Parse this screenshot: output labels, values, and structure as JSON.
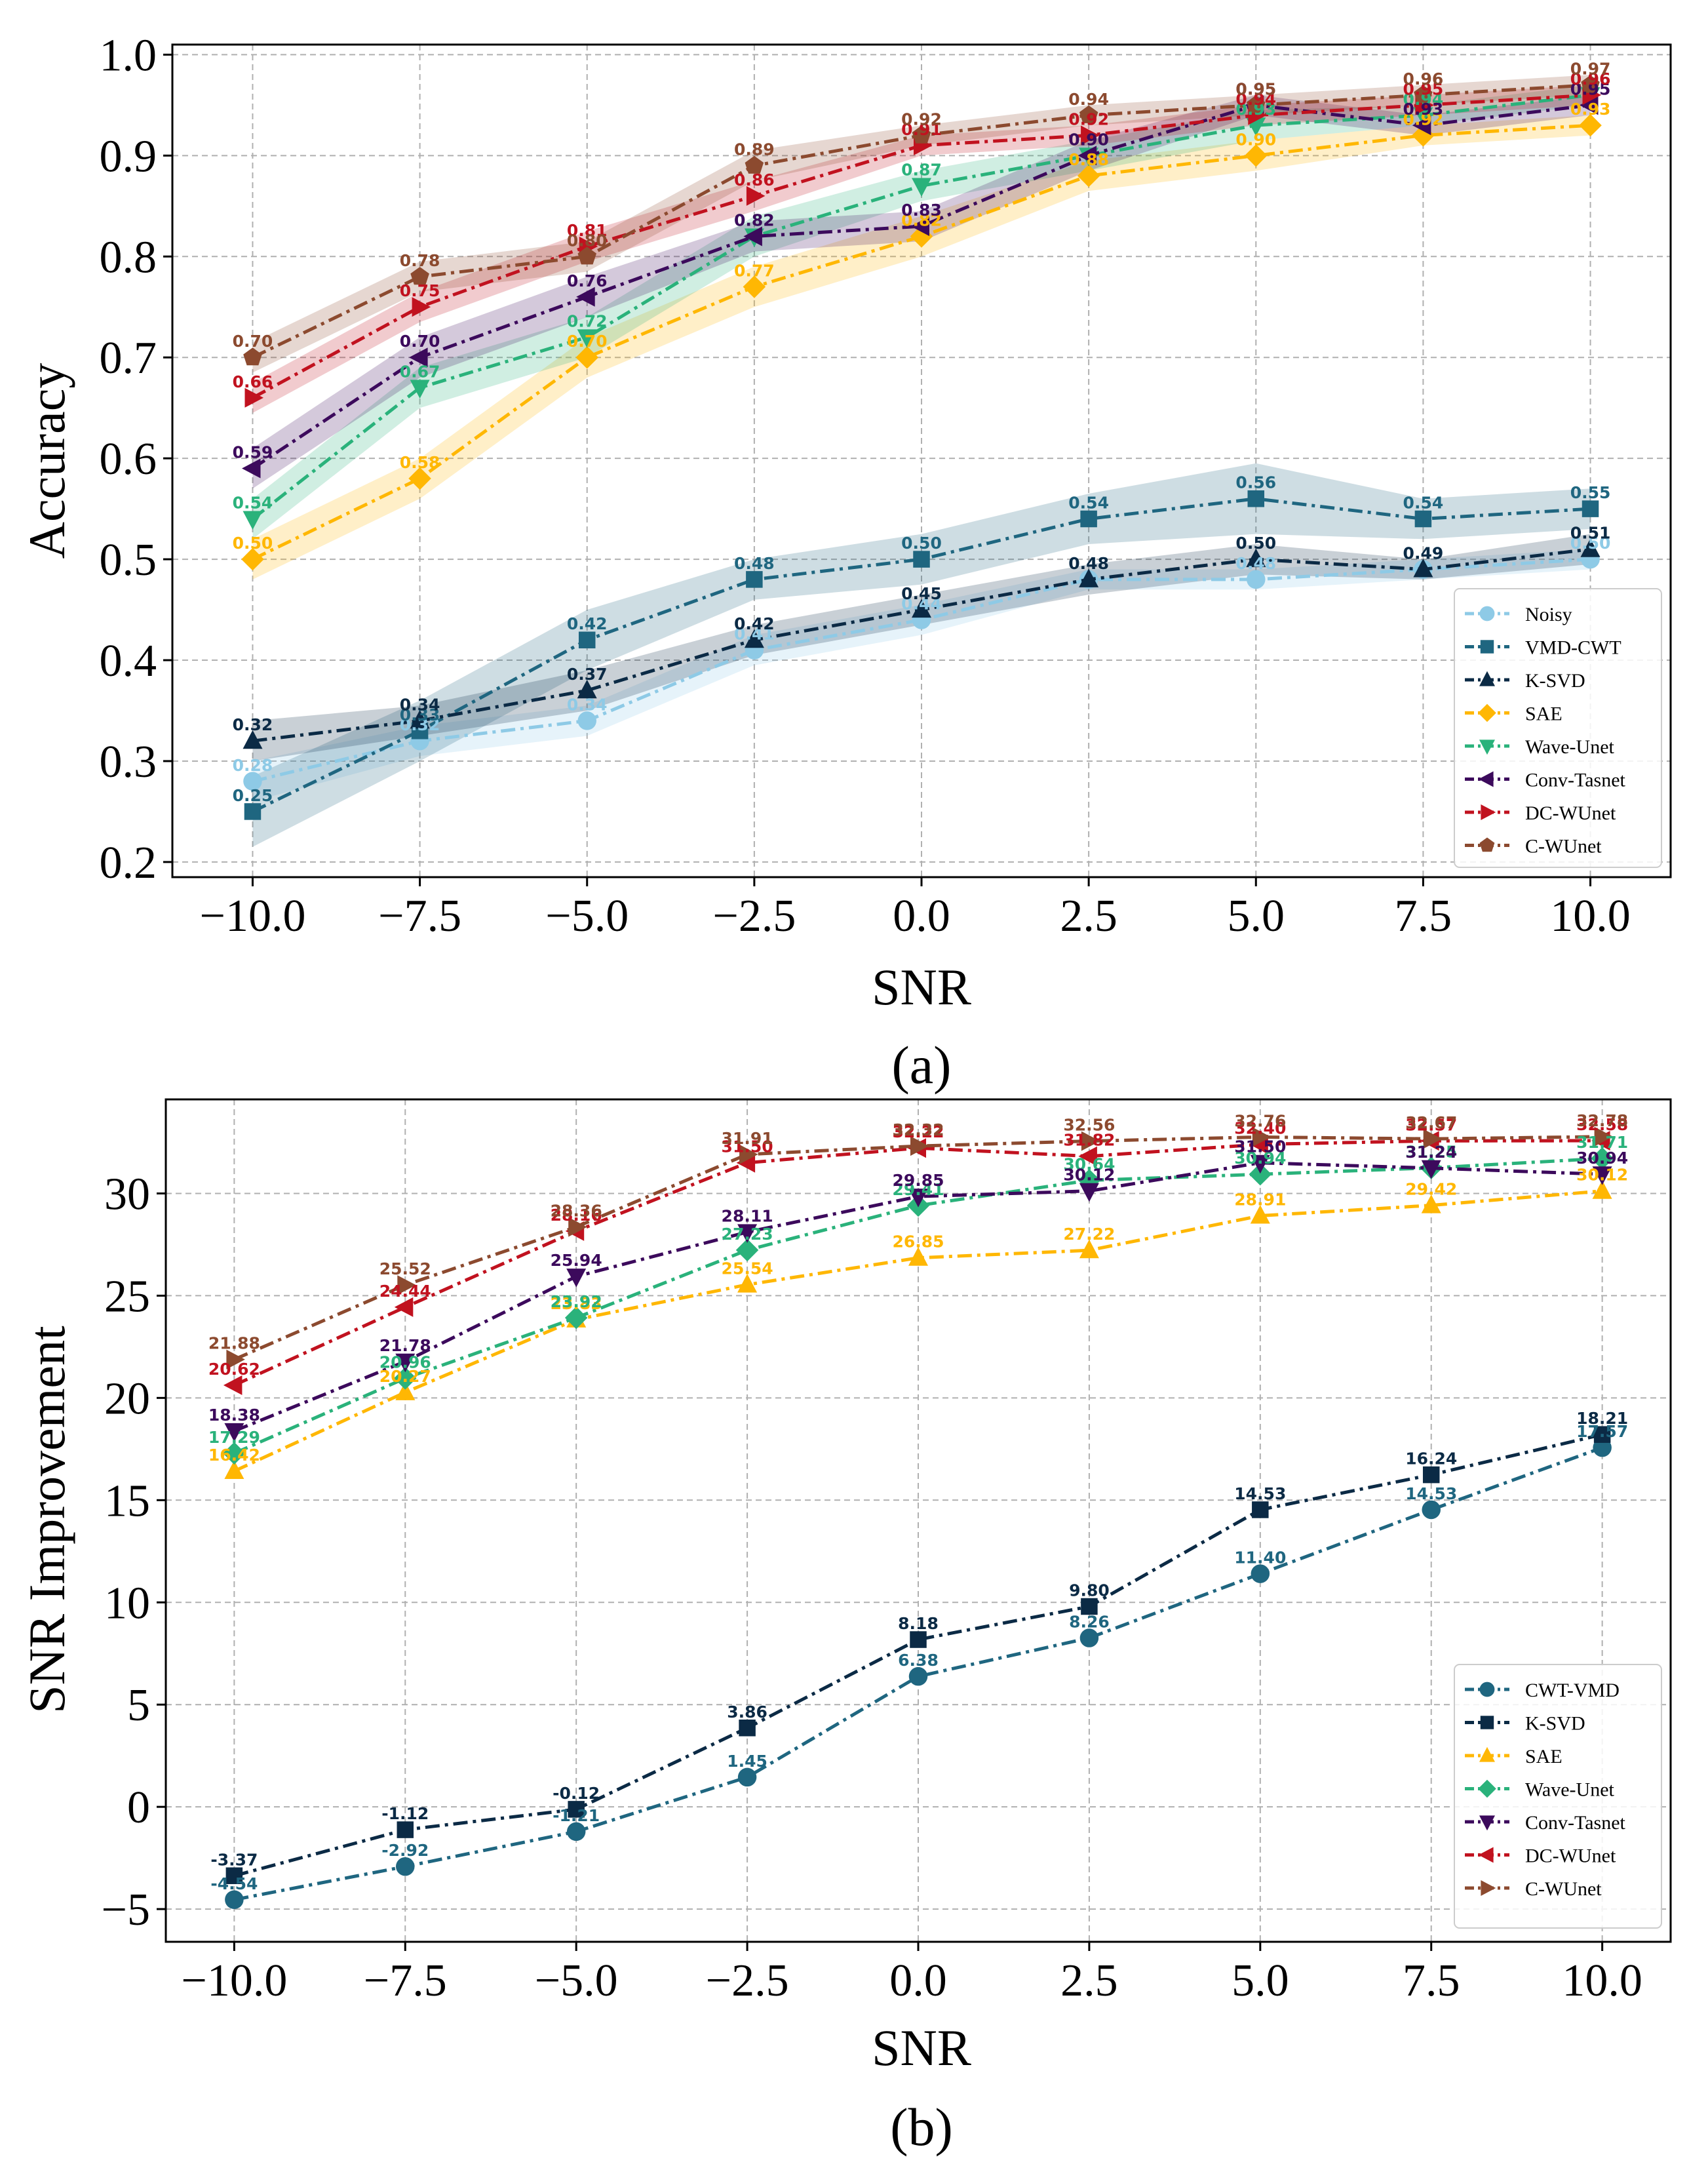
{
  "chart_data": [
    {
      "type": "line",
      "panel": "(a)",
      "xlabel": "SNR",
      "ylabel": "Accuracy",
      "x": [
        -10.0,
        -7.5,
        -5.0,
        -2.5,
        0.0,
        2.5,
        5.0,
        7.5,
        10.0
      ],
      "xticks": [
        -10.0,
        -7.5,
        -5.0,
        -2.5,
        0.0,
        2.5,
        5.0,
        7.5,
        10.0
      ],
      "xticklabels": [
        "−10.0",
        "−7.5",
        "−5.0",
        "−2.5",
        "0.0",
        "2.5",
        "5.0",
        "7.5",
        "10.0"
      ],
      "yticks": [
        0.2,
        0.3,
        0.4,
        0.5,
        0.6,
        0.7,
        0.8,
        0.9,
        1.0
      ],
      "yticklabels": [
        "0.2",
        "0.3",
        "0.4",
        "0.5",
        "0.6",
        "0.7",
        "0.8",
        "0.9",
        "1.0"
      ],
      "xlim": [
        -11.2,
        11.2
      ],
      "ylim": [
        0.185,
        1.01
      ],
      "grid": true,
      "legend_position": "lower right",
      "shaded_band": true,
      "series": [
        {
          "name": "Noisy",
          "color": "#8ecae6",
          "marker": "circle",
          "values": [
            0.28,
            0.32,
            0.34,
            0.41,
            0.44,
            0.48,
            0.48,
            0.49,
            0.5
          ],
          "labels": [
            "0.28",
            "0.32",
            "0.34",
            "0.41",
            "0.44",
            "0.48",
            "0.48",
            "0.49",
            "0.50"
          ],
          "band": [
            0.02,
            0.015,
            0.015,
            0.015,
            0.015,
            0.01,
            0.01,
            0.01,
            0.01
          ]
        },
        {
          "name": "VMD-CWT",
          "color": "#1f6680",
          "marker": "square",
          "values": [
            0.25,
            0.33,
            0.42,
            0.48,
            0.5,
            0.54,
            0.56,
            0.54,
            0.55
          ],
          "labels": [
            "0.25",
            "0.33",
            "0.42",
            "0.48",
            "0.50",
            "0.54",
            "0.56",
            "0.54",
            "0.55"
          ],
          "band": [
            0.035,
            0.03,
            0.03,
            0.02,
            0.025,
            0.025,
            0.035,
            0.02,
            0.02
          ]
        },
        {
          "name": "K-SVD",
          "color": "#0b2a45",
          "marker": "triangle-up",
          "values": [
            0.32,
            0.34,
            0.37,
            0.42,
            0.45,
            0.48,
            0.5,
            0.49,
            0.51
          ],
          "labels": [
            "0.32",
            "0.34",
            "0.37",
            "0.42",
            "0.45",
            "0.48",
            "0.50",
            "0.49",
            "0.51"
          ],
          "band": [
            0.02,
            0.015,
            0.02,
            0.015,
            0.015,
            0.015,
            0.015,
            0.01,
            0.015
          ]
        },
        {
          "name": "SAE",
          "color": "#ffb703",
          "marker": "diamond",
          "values": [
            0.5,
            0.58,
            0.7,
            0.77,
            0.82,
            0.88,
            0.9,
            0.92,
            0.93
          ],
          "labels": [
            "0.50",
            "0.58",
            "0.70",
            "0.77",
            "0.82",
            "0.88",
            "0.90",
            "0.92",
            "0.93"
          ],
          "band": [
            0.02,
            0.02,
            0.02,
            0.02,
            0.02,
            0.015,
            0.015,
            0.01,
            0.01
          ]
        },
        {
          "name": "Wave-Unet",
          "color": "#2ab27b",
          "marker": "triangle-down",
          "values": [
            0.54,
            0.67,
            0.72,
            0.82,
            0.87,
            0.9,
            0.93,
            0.94,
            0.96
          ],
          "labels": [
            "0.54",
            "0.67",
            "0.72",
            "0.82",
            "0.87",
            "0.90",
            "0.93",
            "0.94",
            "0.96"
          ],
          "band": [
            0.02,
            0.02,
            0.02,
            0.02,
            0.015,
            0.015,
            0.015,
            0.01,
            0.01
          ]
        },
        {
          "name": "Conv-Tasnet",
          "color": "#3c0a5c",
          "marker": "triangle-left",
          "values": [
            0.59,
            0.7,
            0.76,
            0.82,
            0.83,
            0.9,
            0.95,
            0.93,
            0.95
          ],
          "labels": [
            "0.59",
            "0.70",
            "0.76",
            "0.82",
            "0.83",
            "0.90",
            "0.95",
            "0.93",
            "0.95"
          ],
          "band": [
            0.02,
            0.02,
            0.02,
            0.015,
            0.015,
            0.015,
            0.01,
            0.01,
            0.01
          ]
        },
        {
          "name": "DC-WUnet",
          "color": "#c1121f",
          "marker": "triangle-right",
          "values": [
            0.66,
            0.75,
            0.81,
            0.86,
            0.91,
            0.92,
            0.94,
            0.95,
            0.96
          ],
          "labels": [
            "0.66",
            "0.75",
            "0.81",
            "0.86",
            "0.91",
            "0.92",
            "0.94",
            "0.95",
            "0.96"
          ],
          "band": [
            0.015,
            0.015,
            0.015,
            0.015,
            0.01,
            0.01,
            0.01,
            0.01,
            0.01
          ]
        },
        {
          "name": "C-WUnet",
          "color": "#8c4a2f",
          "marker": "pentagon",
          "values": [
            0.7,
            0.78,
            0.8,
            0.89,
            0.92,
            0.94,
            0.95,
            0.96,
            0.97
          ],
          "labels": [
            "0.70",
            "0.78",
            "0.80",
            "0.89",
            "0.92",
            "0.94",
            "0.95",
            "0.96",
            "0.97"
          ],
          "band": [
            0.015,
            0.015,
            0.015,
            0.015,
            0.01,
            0.01,
            0.01,
            0.01,
            0.01
          ]
        }
      ]
    },
    {
      "type": "line",
      "panel": "(b)",
      "xlabel": "SNR",
      "ylabel": "SNR Improvement",
      "x": [
        -10.0,
        -7.5,
        -5.0,
        -2.5,
        0.0,
        2.5,
        5.0,
        7.5,
        10.0
      ],
      "xticks": [
        -10.0,
        -7.5,
        -5.0,
        -2.5,
        0.0,
        2.5,
        5.0,
        7.5,
        10.0
      ],
      "xticklabels": [
        "−10.0",
        "−7.5",
        "−5.0",
        "−2.5",
        "0.0",
        "2.5",
        "5.0",
        "7.5",
        "10.0"
      ],
      "yticks": [
        -5,
        0,
        5,
        10,
        15,
        20,
        25,
        30
      ],
      "yticklabels": [
        "−5",
        "0",
        "5",
        "10",
        "15",
        "20",
        "25",
        "30"
      ],
      "xlim": [
        -11.0,
        11.0
      ],
      "ylim": [
        -6.6,
        34.6
      ],
      "grid": true,
      "legend_position": "lower right",
      "shaded_band": false,
      "series": [
        {
          "name": "CWT-VMD",
          "color": "#1f6680",
          "marker": "circle",
          "values": [
            -4.54,
            -2.92,
            -1.21,
            1.45,
            6.38,
            8.26,
            11.4,
            14.53,
            17.57
          ],
          "labels": [
            "-4.54",
            "-2.92",
            "-1.21",
            "1.45",
            "6.38",
            "8.26",
            "11.40",
            "14.53",
            "17.57"
          ]
        },
        {
          "name": "K-SVD",
          "color": "#0b2a45",
          "marker": "square",
          "values": [
            -3.37,
            -1.12,
            -0.12,
            3.86,
            8.18,
            9.8,
            14.53,
            16.24,
            18.21
          ],
          "labels": [
            "-3.37",
            "-1.12",
            "-0.12",
            "3.86",
            "8.18",
            "9.80",
            "14.53",
            "16.24",
            "18.21"
          ]
        },
        {
          "name": "SAE",
          "color": "#ffb703",
          "marker": "triangle-up",
          "values": [
            16.42,
            20.27,
            23.83,
            25.54,
            26.85,
            27.22,
            28.91,
            29.42,
            30.12
          ],
          "labels": [
            "16.42",
            "20.27",
            "23.83",
            "25.54",
            "26.85",
            "27.22",
            "28.91",
            "29.42",
            "30.12"
          ]
        },
        {
          "name": "Wave-Unet",
          "color": "#2ab27b",
          "marker": "diamond",
          "values": [
            17.29,
            20.96,
            23.92,
            27.23,
            29.41,
            30.64,
            30.94,
            31.25,
            31.71
          ],
          "labels": [
            "17.29",
            "20.96",
            "23.92",
            "27.23",
            "29.41",
            "30.64",
            "30.94",
            "31.25",
            "31.71"
          ]
        },
        {
          "name": "Conv-Tasnet",
          "color": "#3c0a5c",
          "marker": "triangle-down",
          "values": [
            18.38,
            21.78,
            25.94,
            28.11,
            29.85,
            30.12,
            31.5,
            31.24,
            30.94
          ],
          "labels": [
            "18.38",
            "21.78",
            "25.94",
            "28.11",
            "29.85",
            "30.12",
            "31.50",
            "31.24",
            "30.94"
          ]
        },
        {
          "name": "DC-WUnet",
          "color": "#c1121f",
          "marker": "triangle-left",
          "values": [
            20.62,
            24.44,
            28.16,
            31.5,
            32.22,
            31.82,
            32.4,
            32.57,
            32.58
          ],
          "labels": [
            "20.62",
            "24.44",
            "28.16",
            "31.50",
            "32.22",
            "31.82",
            "32.40",
            "32.57",
            "32.58"
          ]
        },
        {
          "name": "C-WUnet",
          "color": "#8c4a2f",
          "marker": "triangle-right",
          "values": [
            21.88,
            25.52,
            28.36,
            31.91,
            32.32,
            32.56,
            32.76,
            32.67,
            32.78
          ],
          "labels": [
            "21.88",
            "25.52",
            "28.36",
            "31.91",
            "32.32",
            "32.56",
            "32.76",
            "32.67",
            "32.78"
          ]
        }
      ]
    }
  ]
}
